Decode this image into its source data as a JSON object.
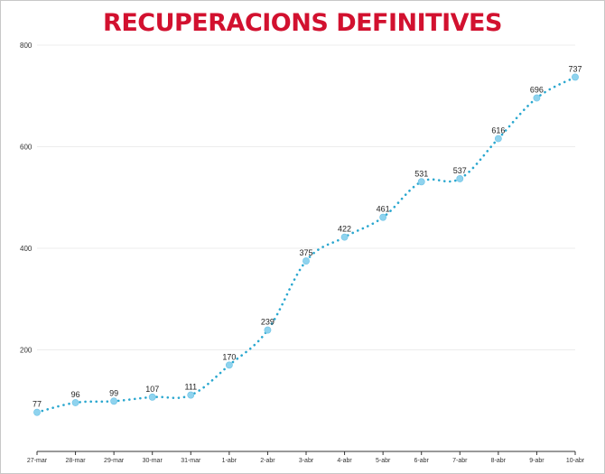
{
  "chart_data": {
    "type": "line",
    "title": "RECUPERACIONS DEFINITIVES",
    "xlabel": "",
    "ylabel": "",
    "categories": [
      "27-mar",
      "28-mar",
      "29-mar",
      "30-mar",
      "31-mar",
      "1-abr",
      "2-abr",
      "3-abr",
      "4-abr",
      "5-abr",
      "6-abr",
      "7-abr",
      "8-abr",
      "9-abr",
      "10-abr"
    ],
    "series": [
      {
        "values": [
          77,
          96,
          99,
          107,
          111,
          170,
          239,
          375,
          422,
          461,
          531,
          537,
          616,
          696,
          737
        ]
      }
    ],
    "yticks": [
      "800",
      "600",
      "400",
      "200"
    ],
    "ylim": [
      0,
      800
    ],
    "grid": true,
    "line_style": "dotted",
    "colors": {
      "line": "#2aa7cf",
      "marker": "#8fd3ee",
      "title": "#d2112f"
    }
  }
}
